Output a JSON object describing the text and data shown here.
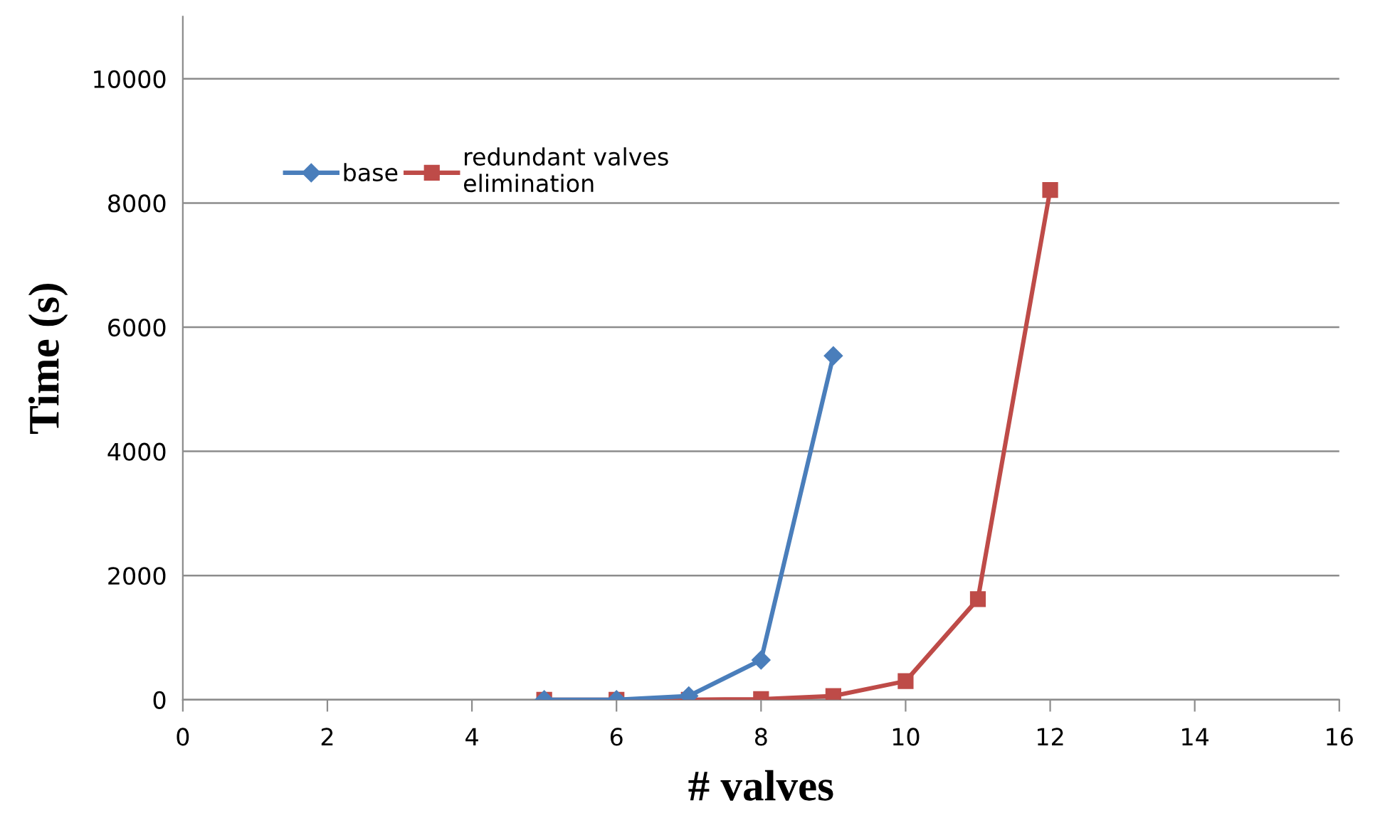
{
  "chart_data": {
    "type": "line",
    "xlabel": "# valves",
    "ylabel": "Time (s)",
    "xlim": [
      0,
      16
    ],
    "xticks": [
      0,
      2,
      4,
      6,
      8,
      10,
      12,
      14,
      16
    ],
    "ylim": [
      0,
      11000
    ],
    "yticks": [
      0,
      2000,
      4000,
      6000,
      8000,
      10000
    ],
    "grid": "y",
    "legend": "top left",
    "line_style": "solid",
    "series": [
      {
        "name": "base",
        "color": "#4a7ebb",
        "marker": "diamond",
        "x": [
          5,
          6,
          7,
          8,
          9
        ],
        "values": [
          0,
          0,
          60,
          640,
          5540
        ]
      },
      {
        "name": "redundant valves\nelimination",
        "color": "#be4b48",
        "marker": "square",
        "x": [
          5,
          6,
          7,
          8,
          9,
          10,
          11,
          12
        ],
        "values": [
          0,
          0,
          0,
          10,
          60,
          300,
          1620,
          8210
        ]
      }
    ]
  }
}
